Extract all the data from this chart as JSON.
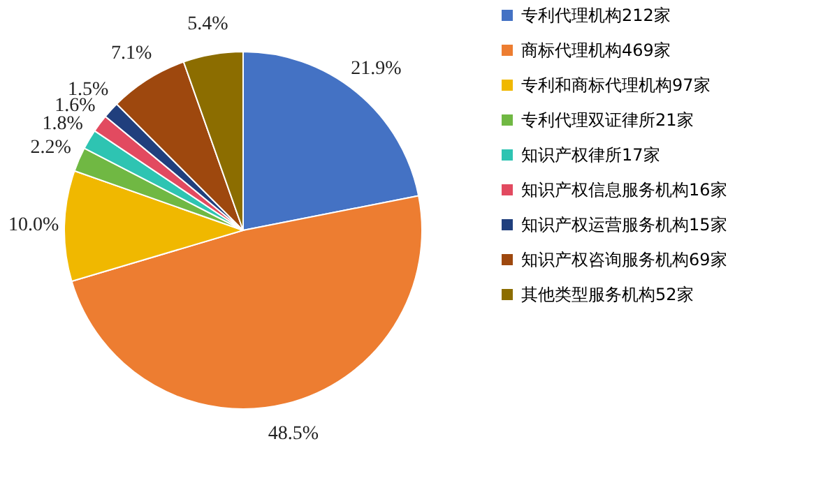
{
  "chart_data": {
    "type": "pie",
    "categories": [
      "专利代理机构212家",
      "商标代理机构469家",
      "专利和商标代理机构97家",
      "专利代理双证律所21家",
      "知识产权律所17家",
      "知识产权信息服务机构16家",
      "知识产权运营服务机构15家",
      "知识产权咨询服务机构69家",
      "其他类型服务机构52家"
    ],
    "values": [
      21.9,
      48.5,
      10.0,
      2.2,
      1.8,
      1.6,
      1.5,
      7.1,
      5.4
    ],
    "value_labels": [
      "21.9%",
      "48.5%",
      "10.0%",
      "2.2%",
      "1.8%",
      "1.6%",
      "1.5%",
      "7.1%",
      "5.4%"
    ],
    "colors": [
      "#4472c4",
      "#ed7d31",
      "#f0b800",
      "#70b843",
      "#2ec4b2",
      "#e24a60",
      "#203f7d",
      "#9e480e",
      "#8c6d00"
    ],
    "legend": "right"
  }
}
